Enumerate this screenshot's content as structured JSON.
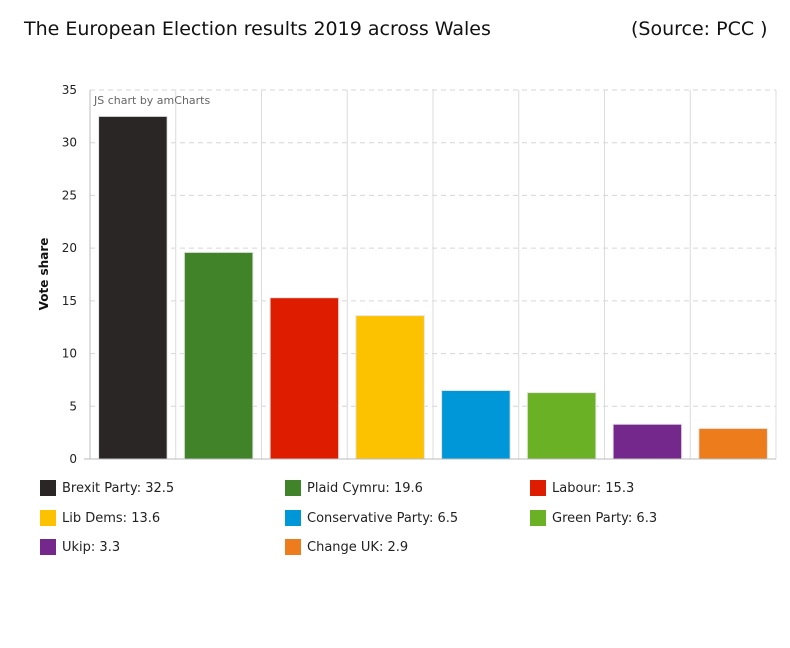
{
  "header": {
    "title": "The European Election results 2019 across Wales",
    "source": "(Source: PCC )"
  },
  "credit": "JS chart by amCharts",
  "chart_data": {
    "type": "bar",
    "title": "The European Election results 2019 across Wales",
    "xlabel": "",
    "ylabel": "Vote share",
    "ylim": [
      0,
      35
    ],
    "yticks": [
      0,
      5,
      10,
      15,
      20,
      25,
      30,
      35
    ],
    "grid": true,
    "legend_position": "bottom",
    "categories": [
      "Brexit Party",
      "Plaid Cymru",
      "Labour",
      "Lib Dems",
      "Conservative Party",
      "Green Party",
      "Ukip",
      "Change UK"
    ],
    "values": [
      32.5,
      19.6,
      15.3,
      13.6,
      6.5,
      6.3,
      3.3,
      2.9
    ],
    "colors": [
      "#2a2625",
      "#418329",
      "#dd1c00",
      "#fcc200",
      "#0097d9",
      "#6bb126",
      "#74288c",
      "#ec7c1c"
    ]
  }
}
